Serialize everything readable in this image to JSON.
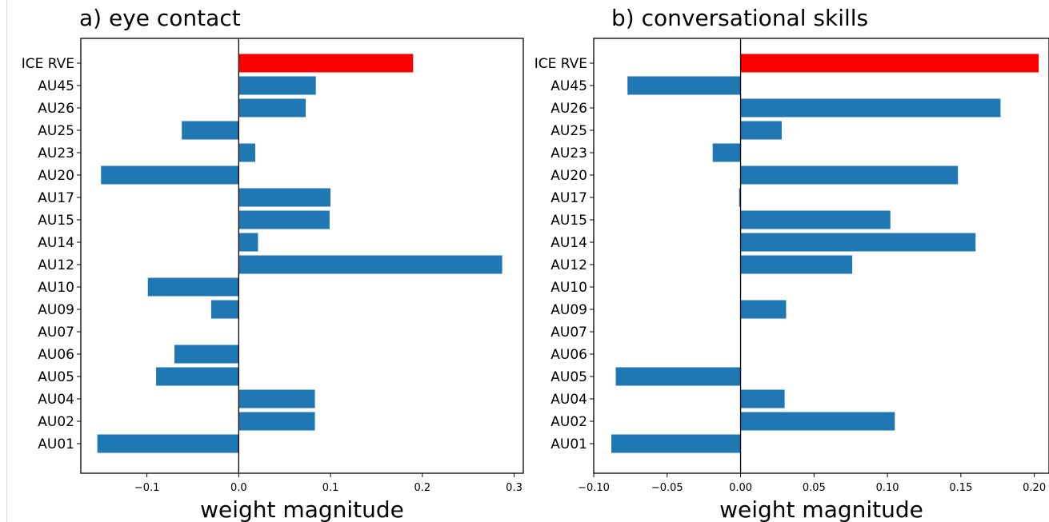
{
  "figure": {
    "categories": [
      "ICE RVE",
      "AU45",
      "AU26",
      "AU25",
      "AU23",
      "AU20",
      "AU17",
      "AU15",
      "AU14",
      "AU12",
      "AU10",
      "AU09",
      "AU07",
      "AU06",
      "AU05",
      "AU04",
      "AU02",
      "AU01"
    ],
    "highlight_category": "ICE RVE",
    "colors": {
      "bar": "#1f77b4",
      "highlight": "#ff0000",
      "axis": "#000000"
    }
  },
  "chart_data": [
    {
      "type": "bar",
      "orientation": "horizontal",
      "title": "a) eye contact",
      "xlabel": "weight magnitude",
      "ylabel": "",
      "xlim": [
        -0.172,
        0.31
      ],
      "xticks": [
        -0.1,
        0.0,
        0.1,
        0.2,
        0.3
      ],
      "xtick_labels": [
        "−0.1",
        "0.0",
        "0.1",
        "0.2",
        "0.3"
      ],
      "categories": [
        "ICE RVE",
        "AU45",
        "AU26",
        "AU25",
        "AU23",
        "AU20",
        "AU17",
        "AU15",
        "AU14",
        "AU12",
        "AU10",
        "AU09",
        "AU07",
        "AU06",
        "AU05",
        "AU04",
        "AU02",
        "AU01"
      ],
      "values": [
        0.19,
        0.084,
        0.073,
        -0.062,
        0.018,
        -0.15,
        0.1,
        0.099,
        0.021,
        0.287,
        -0.099,
        -0.03,
        0.0,
        -0.07,
        -0.09,
        0.083,
        0.083,
        -0.154
      ]
    },
    {
      "type": "bar",
      "orientation": "horizontal",
      "title": "b) conversational skills",
      "xlabel": "weight magnitude",
      "ylabel": "",
      "xlim": [
        -0.1,
        0.21
      ],
      "xticks": [
        -0.1,
        -0.05,
        0.0,
        0.05,
        0.1,
        0.15,
        0.2
      ],
      "xtick_labels": [
        "−0.10",
        "−0.05",
        "0.00",
        "0.05",
        "0.10",
        "0.15",
        "0.20"
      ],
      "categories": [
        "ICE RVE",
        "AU45",
        "AU26",
        "AU25",
        "AU23",
        "AU20",
        "AU17",
        "AU15",
        "AU14",
        "AU12",
        "AU10",
        "AU09",
        "AU07",
        "AU06",
        "AU05",
        "AU04",
        "AU02",
        "AU01"
      ],
      "values": [
        0.203,
        -0.077,
        0.177,
        0.028,
        -0.019,
        0.148,
        -0.001,
        0.102,
        0.16,
        0.076,
        0.0,
        0.031,
        0.0,
        0.0,
        -0.085,
        0.03,
        0.105,
        -0.088
      ]
    }
  ]
}
